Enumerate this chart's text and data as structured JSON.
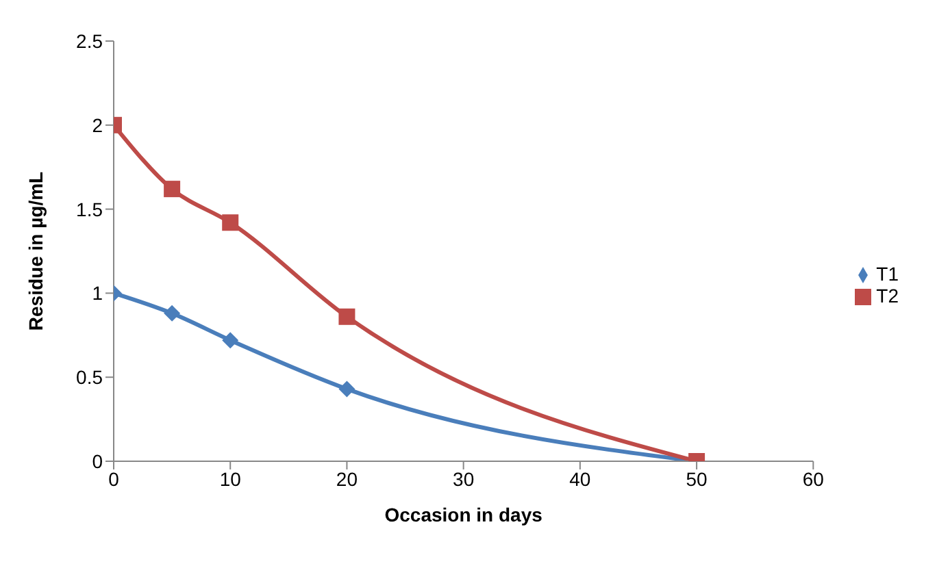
{
  "chart_data": {
    "type": "line",
    "xlabel": "Occasion in days",
    "ylabel": "Residue in µg/mL",
    "x": [
      0,
      5,
      10,
      20,
      50
    ],
    "series": [
      {
        "name": "T1",
        "color": "#4a7ebb",
        "values": [
          1,
          0.88,
          0.72,
          0.43,
          0
        ],
        "marker": "diamond"
      },
      {
        "name": "T2",
        "color": "#be4b48",
        "values": [
          2,
          1.62,
          1.42,
          0.86,
          0
        ],
        "marker": "square"
      }
    ],
    "xlim": [
      0,
      60
    ],
    "xticks": [
      0,
      10,
      20,
      30,
      40,
      50,
      60
    ],
    "ylim": [
      0,
      2.5
    ],
    "yticks": [
      0,
      0.5,
      1,
      1.5,
      2,
      2.5
    ],
    "grid": false,
    "legend": "right"
  }
}
